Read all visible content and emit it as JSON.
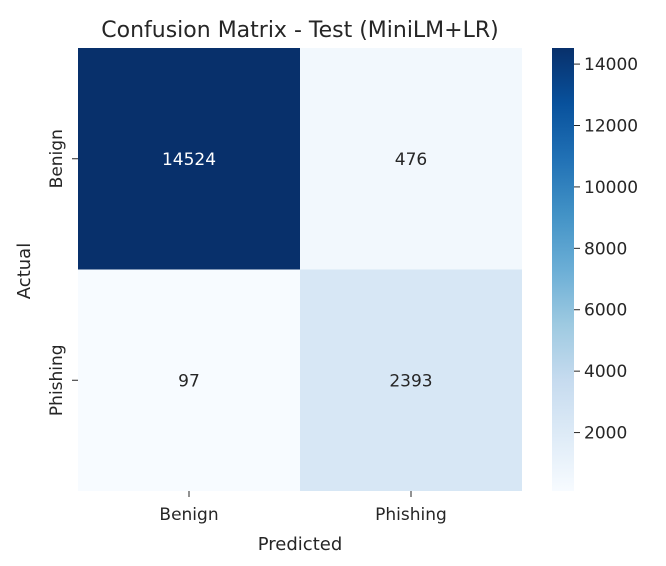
{
  "chart_data": {
    "type": "heatmap",
    "title": "Confusion Matrix - Test (MiniLM+LR)",
    "xlabel": "Predicted",
    "ylabel": "Actual",
    "x_categories": [
      "Benign",
      "Phishing"
    ],
    "y_categories": [
      "Benign",
      "Phishing"
    ],
    "values": [
      [
        14524,
        476
      ],
      [
        97,
        2393
      ]
    ],
    "colormap": "Blues",
    "colorbar": {
      "vmin": 97,
      "vmax": 14524,
      "ticks": [
        2000,
        4000,
        6000,
        8000,
        10000,
        12000,
        14000
      ]
    },
    "grid": false
  }
}
